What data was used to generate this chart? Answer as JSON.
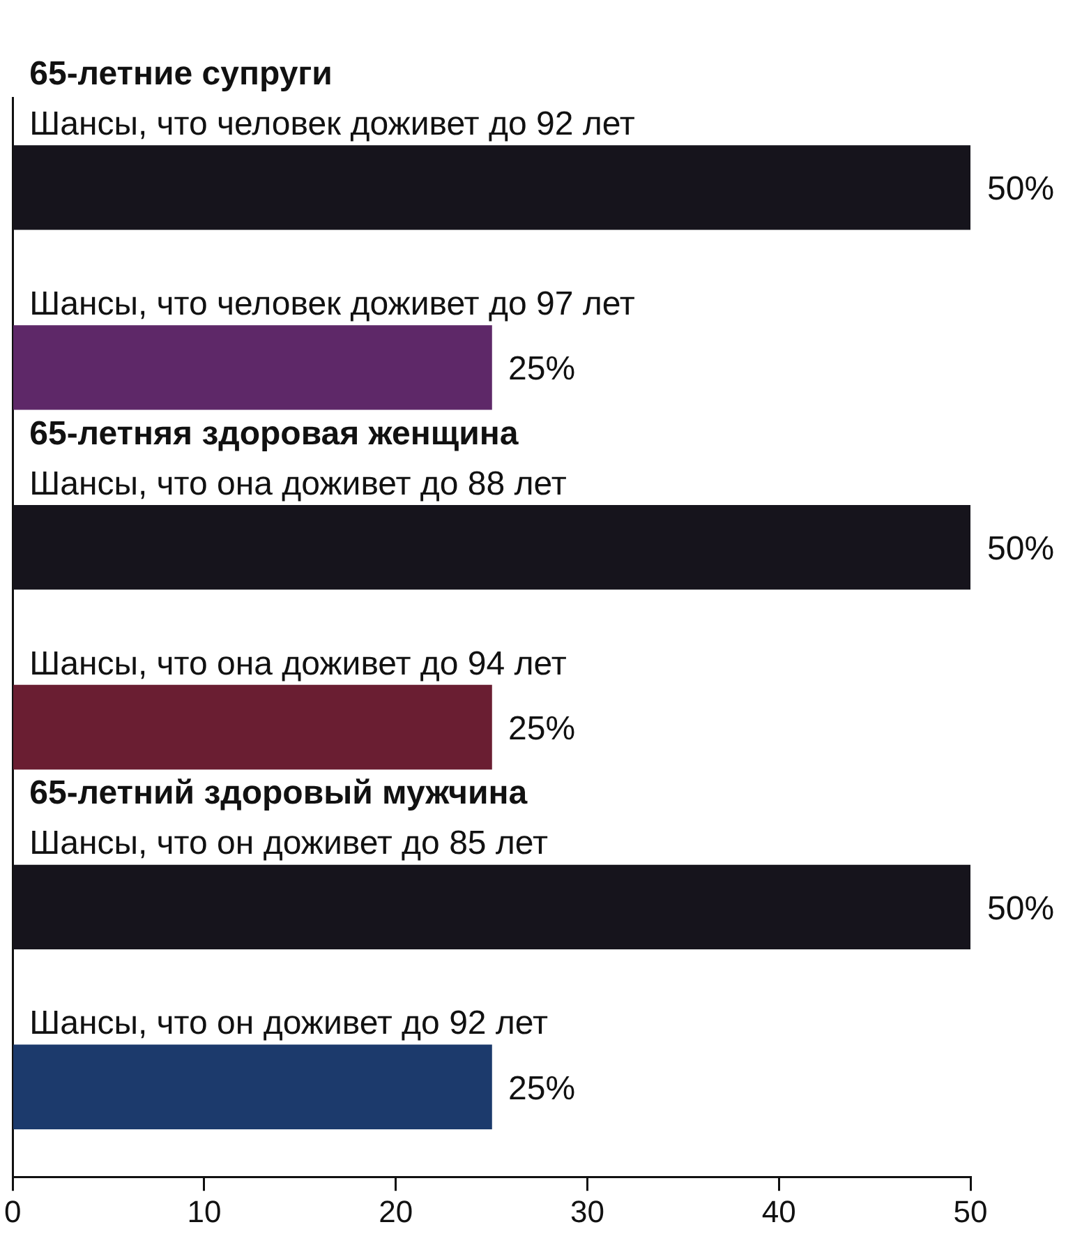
{
  "chart_data": {
    "type": "bar",
    "orientation": "horizontal",
    "categories": [
      "Шансы, что человек доживет до 92 лет",
      "Шансы, что человек доживет до 97 лет",
      "Шансы, что она доживет до 88 лет",
      "Шансы, что она доживет до 94 лет",
      "Шансы, что он доживет до 85 лет",
      "Шансы, что он доживет до 92 лет"
    ],
    "values": [
      50,
      25,
      50,
      25,
      50,
      25
    ],
    "colors": [
      "#16141c",
      "#5e2868",
      "#16141c",
      "#6a1e32",
      "#16141c",
      "#1c3a6c"
    ],
    "value_labels": [
      "50%",
      "25%",
      "50%",
      "25%",
      "50%",
      "25%"
    ],
    "xlim": [
      0,
      50
    ],
    "xticks": [
      0,
      10,
      20,
      30,
      40,
      50
    ],
    "grid": false,
    "legend": false,
    "annotations": [
      "65-летние супруги",
      "65-летняя здоровая женщина",
      "65-летний здоровый мужчина"
    ]
  }
}
